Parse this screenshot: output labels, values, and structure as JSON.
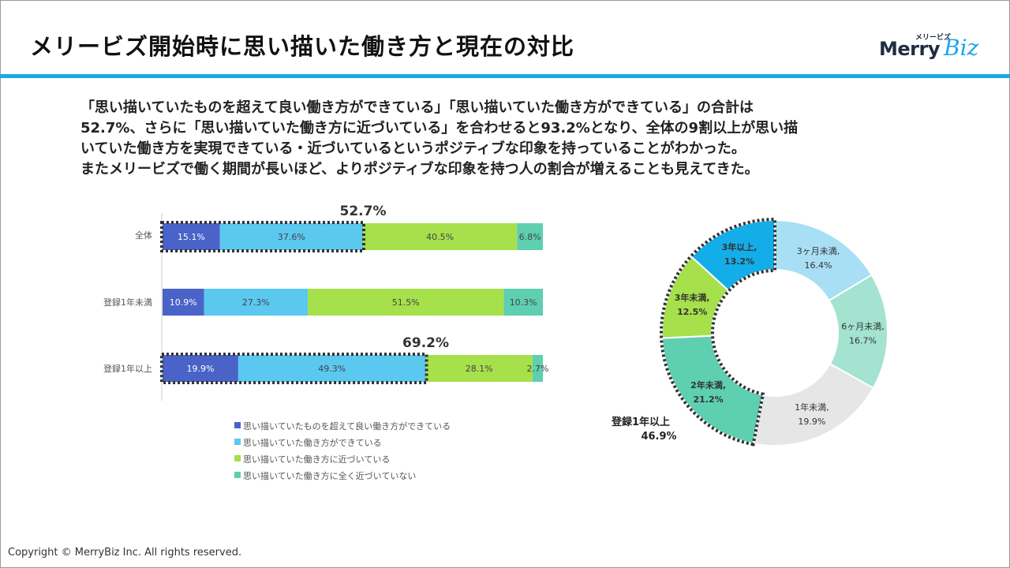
{
  "header": {
    "title": "メリービズ開始時に思い描いた働き方と現在の対比",
    "logo_small": "メリービズ",
    "logo_main": "Merry",
    "logo_script": "Biz"
  },
  "summary": [
    "「思い描いていたものを超えて良い働き方ができている」「思い描いていた働き方ができている」の合計は",
    "52.7%、さらに「思い描いていた働き方に近づいている」を合わせると93.2%となり、全体の9割以上が思い描",
    "いていた働き方を実現できている・近づいているというポジティブな印象を持っていることがわかった。",
    "またメリービズで働く期間が長いほど、よりポジティブな印象を持つ人の割合が増えることも見えてきた。"
  ],
  "colors": {
    "accent": "#1aa7e8",
    "series": [
      "#4a63c8",
      "#5bc8f0",
      "#a6e04a",
      "#5ecfb0"
    ],
    "donut": [
      "#a8dff5",
      "#a3e3cf",
      "#e6e6e6",
      "#5ecfb0",
      "#a6e04a",
      "#13aee9"
    ]
  },
  "chart_data": [
    {
      "type": "bar",
      "orientation": "horizontal",
      "stacked": true,
      "categories": [
        "全体",
        "登録1年未満",
        "登録1年以上"
      ],
      "series": [
        {
          "name": "思い描いていたものを超えて良い働き方ができている",
          "values": [
            15.1,
            10.9,
            19.9
          ],
          "labels": [
            "15.1%",
            "10.9%",
            "19.9%"
          ]
        },
        {
          "name": "思い描いていた働き方ができている",
          "values": [
            37.6,
            27.3,
            49.3
          ],
          "labels": [
            "37.6%",
            "27.3%",
            "49.3%"
          ]
        },
        {
          "name": "思い描いていた働き方に近づいている",
          "values": [
            40.5,
            51.5,
            28.1
          ],
          "labels": [
            "40.5%",
            "51.5%",
            "28.1%"
          ]
        },
        {
          "name": "思い描いていた働き方に全く近づいていない",
          "values": [
            6.8,
            10.3,
            2.7
          ],
          "labels": [
            "6.8%",
            "10.3%",
            "2.7%"
          ]
        }
      ],
      "highlights": [
        {
          "category": "全体",
          "value": 52.7,
          "label": "52.7%"
        },
        {
          "category": "登録1年以上",
          "value": 69.2,
          "label": "69.2%"
        }
      ],
      "xlim": [
        0,
        100
      ],
      "legend": "bottom"
    },
    {
      "type": "pie",
      "variant": "donut",
      "slices": [
        {
          "label": "3ヶ月未満,",
          "value": 16.4,
          "value_label": "16.4%",
          "bold": false
        },
        {
          "label": "6ヶ月未満,",
          "value": 16.7,
          "value_label": "16.7%",
          "bold": false
        },
        {
          "label": "1年未満,",
          "value": 19.9,
          "value_label": "19.9%",
          "bold": false
        },
        {
          "label": "2年未満,",
          "value": 21.2,
          "value_label": "21.2%",
          "bold": true
        },
        {
          "label": "3年未満,",
          "value": 12.5,
          "value_label": "12.5%",
          "bold": true
        },
        {
          "label": "3年以上,",
          "value": 13.2,
          "value_label": "13.2%",
          "bold": true
        }
      ],
      "group_annotation": {
        "label": "登録1年以上",
        "value_label": "46.9%"
      }
    }
  ],
  "footer": {
    "copyright": "Copyright © MerryBiz Inc. All rights reserved."
  }
}
